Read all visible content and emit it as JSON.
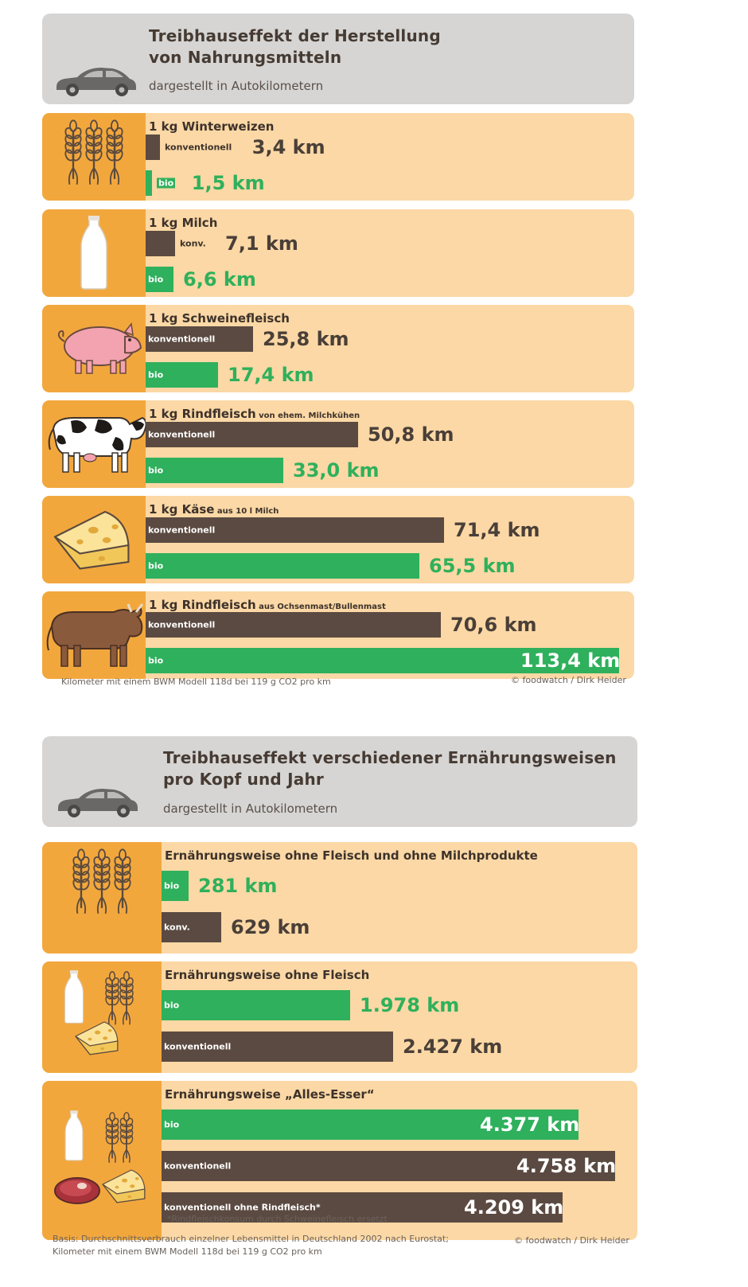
{
  "chart_data": [
    {
      "type": "bar",
      "title_line1": "Treibhauseffekt der Herstellung",
      "title_line2": "von Nahrungsmitteln",
      "subtitle": "dargestellt in Autokilometern",
      "unit": "km",
      "rows": [
        {
          "label": "1 kg Winterweizen",
          "sub": "",
          "icon": "wheat-icon",
          "bars": [
            {
              "series": "konv",
              "label": "konventionell",
              "value": 3.4,
              "value_label": "3,4 km"
            },
            {
              "series": "bio",
              "label": "bio",
              "value": 1.5,
              "value_label": "1,5 km"
            }
          ]
        },
        {
          "label": "1 kg Milch",
          "sub": "",
          "icon": "milk-bottle-icon",
          "bars": [
            {
              "series": "konv",
              "label": "konv.",
              "value": 7.1,
              "value_label": "7,1 km"
            },
            {
              "series": "bio",
              "label": "bio",
              "value": 6.6,
              "value_label": "6,6 km"
            }
          ]
        },
        {
          "label": "1 kg Schweinefleisch",
          "sub": "",
          "icon": "pig-icon",
          "bars": [
            {
              "series": "konv",
              "label": "konventionell",
              "value": 25.8,
              "value_label": "25,8 km"
            },
            {
              "series": "bio",
              "label": "bio",
              "value": 17.4,
              "value_label": "17,4 km"
            }
          ]
        },
        {
          "label": "1 kg Rindfleisch",
          "sub": "von ehem. Milchkühen",
          "icon": "cow-icon",
          "bars": [
            {
              "series": "konv",
              "label": "konventionell",
              "value": 50.8,
              "value_label": "50,8 km"
            },
            {
              "series": "bio",
              "label": "bio",
              "value": 33.0,
              "value_label": "33,0 km"
            }
          ]
        },
        {
          "label": "1 kg Käse",
          "sub": "aus 10 l Milch",
          "icon": "cheese-icon",
          "bars": [
            {
              "series": "konv",
              "label": "konventionell",
              "value": 71.4,
              "value_label": "71,4 km"
            },
            {
              "series": "bio",
              "label": "bio",
              "value": 65.5,
              "value_label": "65,5 km"
            }
          ]
        },
        {
          "label": "1 kg Rindfleisch",
          "sub": "aus Ochsenmast/Bullenmast",
          "icon": "bull-icon",
          "bars": [
            {
              "series": "konv",
              "label": "konventionell",
              "value": 70.6,
              "value_label": "70,6 km"
            },
            {
              "series": "bio",
              "label": "bio",
              "value": 113.4,
              "value_label": "113,4 km"
            }
          ]
        }
      ],
      "footer_left": "Kilometer mit einem BWM Modell 118d bei 119 g CO2 pro km",
      "footer_right": "© foodwatch / Dirk Heider"
    },
    {
      "type": "bar",
      "title_line1": "Treibhauseffekt verschiedener Ernährungsweisen",
      "title_line2": "pro Kopf und Jahr",
      "subtitle": "dargestellt in Autokilometern",
      "unit": "km",
      "rows": [
        {
          "label": "Ernährungsweise ohne Fleisch und ohne Milchprodukte",
          "icon": "wheat-icon",
          "bars": [
            {
              "series": "bio",
              "label": "bio",
              "value": 281,
              "value_label": "281 km"
            },
            {
              "series": "konv",
              "label": "konv.",
              "value": 629,
              "value_label": "629 km"
            }
          ]
        },
        {
          "label": "Ernährungsweise ohne Fleisch",
          "icon": "milk-wheat-cheese-icon",
          "bars": [
            {
              "series": "bio",
              "label": "bio",
              "value": 1978,
              "value_label": "1.978 km"
            },
            {
              "series": "konv",
              "label": "konventionell",
              "value": 2427,
              "value_label": "2.427 km"
            }
          ]
        },
        {
          "label": "Ernährungsweise „Alles-Esser“",
          "icon": "mixed-food-icon",
          "bars": [
            {
              "series": "bio",
              "label": "bio",
              "value": 4377,
              "value_label": "4.377 km"
            },
            {
              "series": "konv",
              "label": "konventionell",
              "value": 4758,
              "value_label": "4.758 km"
            },
            {
              "series": "konv",
              "label": "konventionell ohne Rindfleisch*",
              "value": 4209,
              "value_label": "4.209 km"
            }
          ]
        }
      ],
      "footnote": "*Rindfleischkonsum durch Schweinefleisch ersetzt",
      "footer_left_1": "Basis: Durchschnittsverbrauch einzelner Lebensmittel in Deutschland 2002 nach Eurostat;",
      "footer_left_2": "Kilometer mit einem BWM Modell 118d bei 119 g CO2 pro km",
      "footer_right": "© foodwatch / Dirk Heider"
    }
  ],
  "colors": {
    "header_bg": "#d6d5d4",
    "row_bg": "#fbd8a5",
    "icon_bg": "#f2a73d",
    "konv": "#5b4a41",
    "bio": "#2fb05c"
  }
}
